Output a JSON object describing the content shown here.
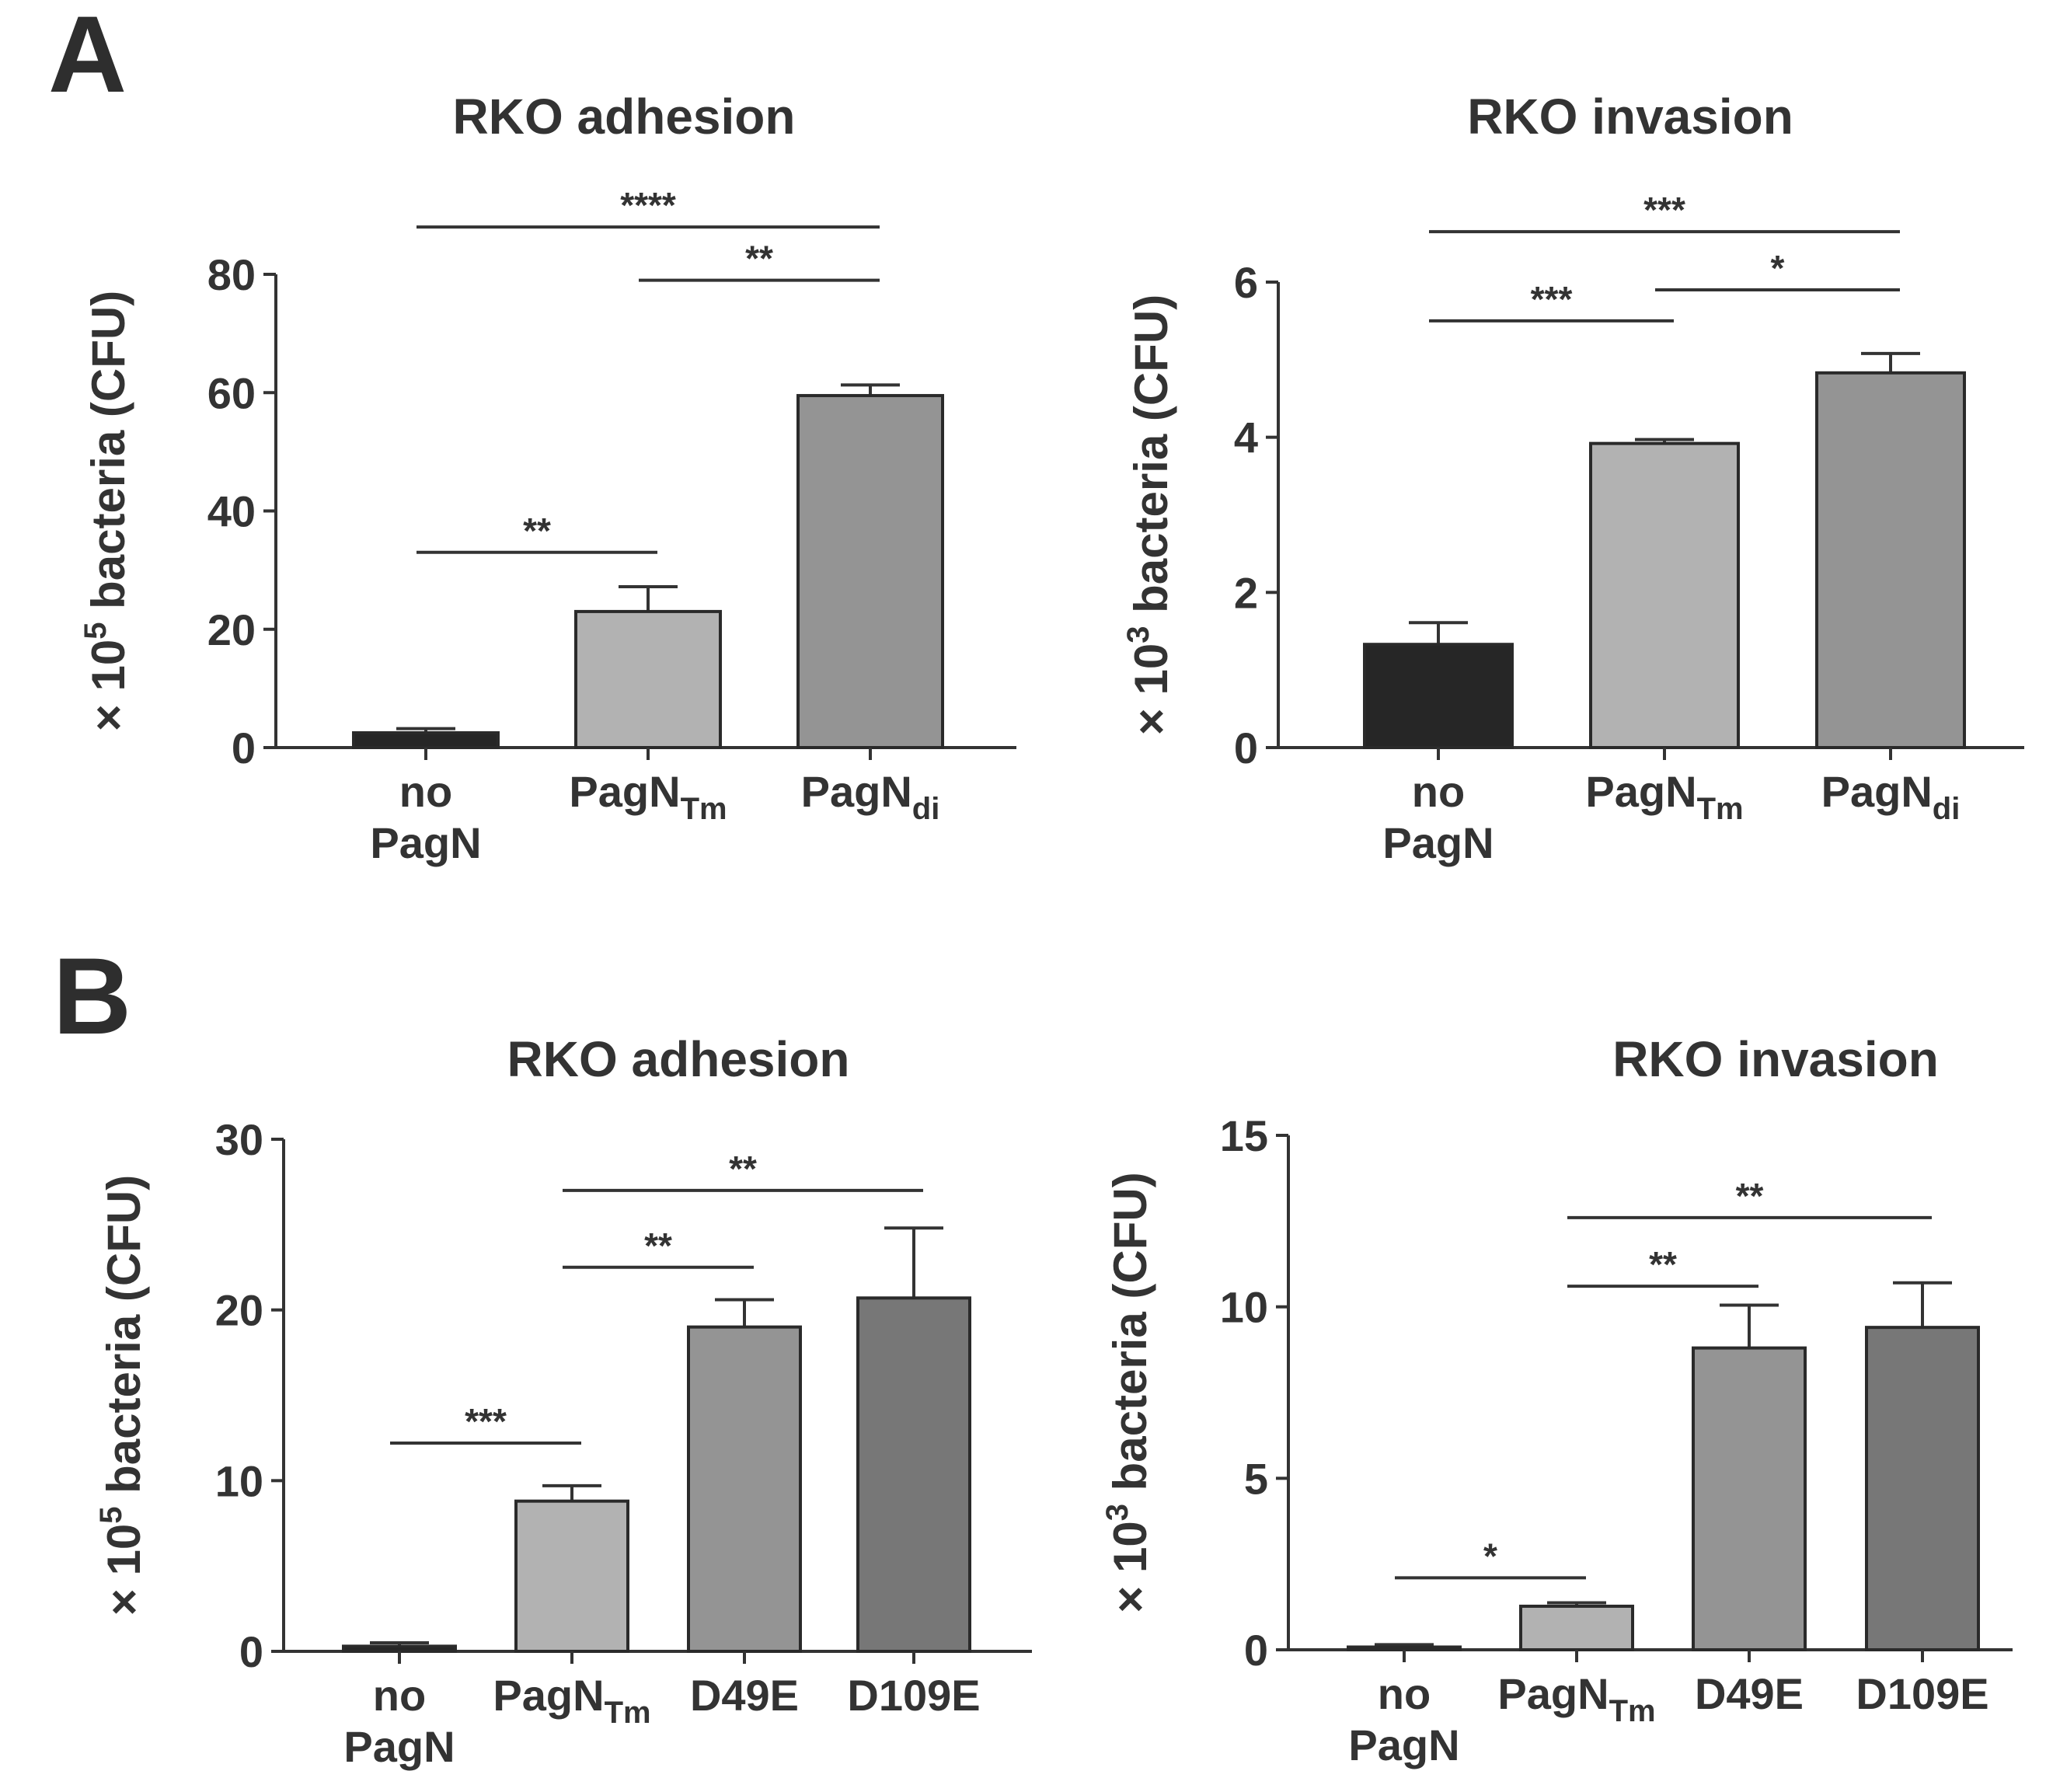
{
  "panels": [
    {
      "label": "A"
    },
    {
      "label": "B"
    }
  ],
  "chart_data": [
    {
      "type": "bar",
      "panel": "A",
      "title": "RKO adhesion",
      "ylabel": "× 10^5 bacteria (CFU)",
      "ylabel_parts": {
        "prefix": "× 10",
        "exp": "5",
        "suffix": " bacteria (CFU)"
      },
      "ylim": [
        0,
        80
      ],
      "yticks": [
        0,
        20,
        40,
        60,
        80
      ],
      "categories": [
        {
          "lines": [
            "no",
            "PagN"
          ]
        },
        {
          "base": "PagN",
          "sub": "Tm"
        },
        {
          "base": "PagN",
          "sub": "di"
        }
      ],
      "values": [
        2.5,
        23,
        59.5
      ],
      "errors": [
        0.7,
        4.2,
        1.8
      ],
      "colors": [
        "#262626",
        "#b2b2b2",
        "#949494"
      ],
      "significance": [
        {
          "from": 0,
          "to": 1,
          "label": "**",
          "y": 33
        },
        {
          "from": 1,
          "to": 2,
          "label": "**",
          "y": 79
        },
        {
          "from": 0,
          "to": 2,
          "label": "****",
          "y": 88
        }
      ]
    },
    {
      "type": "bar",
      "panel": "A",
      "title": "RKO invasion",
      "ylabel": "× 10^3 bacteria (CFU)",
      "ylabel_parts": {
        "prefix": "× 10",
        "exp": "3",
        "suffix": " bacteria (CFU)"
      },
      "ylim": [
        0,
        6
      ],
      "yticks": [
        0,
        2,
        4,
        6
      ],
      "categories": [
        {
          "lines": [
            "no",
            "PagN"
          ]
        },
        {
          "base": "PagN",
          "sub": "Tm"
        },
        {
          "base": "PagN",
          "sub": "di"
        }
      ],
      "values": [
        1.33,
        3.92,
        4.83
      ],
      "errors": [
        0.28,
        0.05,
        0.25
      ],
      "colors": [
        "#262626",
        "#b2b2b2",
        "#949494"
      ],
      "significance": [
        {
          "from": 0,
          "to": 1,
          "label": "***",
          "y": 5.5
        },
        {
          "from": 1,
          "to": 2,
          "label": "*",
          "y": 5.9
        },
        {
          "from": 0,
          "to": 2,
          "label": "***",
          "y": 6.65
        }
      ]
    },
    {
      "type": "bar",
      "panel": "B",
      "title": "RKO adhesion",
      "ylabel": "× 10^5 bacteria (CFU)",
      "ylabel_parts": {
        "prefix": "× 10",
        "exp": "5",
        "suffix": " bacteria (CFU)"
      },
      "ylim": [
        0,
        30
      ],
      "yticks": [
        0,
        10,
        20,
        30
      ],
      "categories": [
        {
          "lines": [
            "no",
            "PagN"
          ]
        },
        {
          "base": "PagN",
          "sub": "Tm"
        },
        {
          "base": "D49E"
        },
        {
          "base": "D109E"
        }
      ],
      "values": [
        0.3,
        8.8,
        19,
        20.7
      ],
      "errors": [
        0.2,
        0.9,
        1.6,
        4.1
      ],
      "colors": [
        "#262626",
        "#b2b2b2",
        "#949494",
        "#777777"
      ],
      "significance": [
        {
          "from": 0,
          "to": 1,
          "label": "***",
          "y": 12.2
        },
        {
          "from": 1,
          "to": 2,
          "label": "**",
          "y": 22.5
        },
        {
          "from": 1,
          "to": 3,
          "label": "**",
          "y": 27
        }
      ]
    },
    {
      "type": "bar",
      "panel": "B",
      "title": "RKO invasion",
      "ylabel": "× 10^3 bacteria (CFU)",
      "ylabel_parts": {
        "prefix": "× 10",
        "exp": "3",
        "suffix": " bacteria (CFU)"
      },
      "ylim": [
        0,
        15
      ],
      "yticks": [
        0,
        5,
        10,
        15
      ],
      "categories": [
        {
          "lines": [
            "no",
            "PagN"
          ]
        },
        {
          "base": "PagN",
          "sub": "Tm"
        },
        {
          "base": "D49E"
        },
        {
          "base": "D109E"
        }
      ],
      "values": [
        0.08,
        1.27,
        8.8,
        9.4
      ],
      "errors": [
        0.07,
        0.1,
        1.25,
        1.3
      ],
      "colors": [
        "#262626",
        "#b2b2b2",
        "#949494",
        "#777777"
      ],
      "significance": [
        {
          "from": 0,
          "to": 1,
          "label": "*",
          "y": 2.1
        },
        {
          "from": 1,
          "to": 2,
          "label": "**",
          "y": 10.6
        },
        {
          "from": 1,
          "to": 3,
          "label": "**",
          "y": 12.6
        }
      ]
    }
  ]
}
